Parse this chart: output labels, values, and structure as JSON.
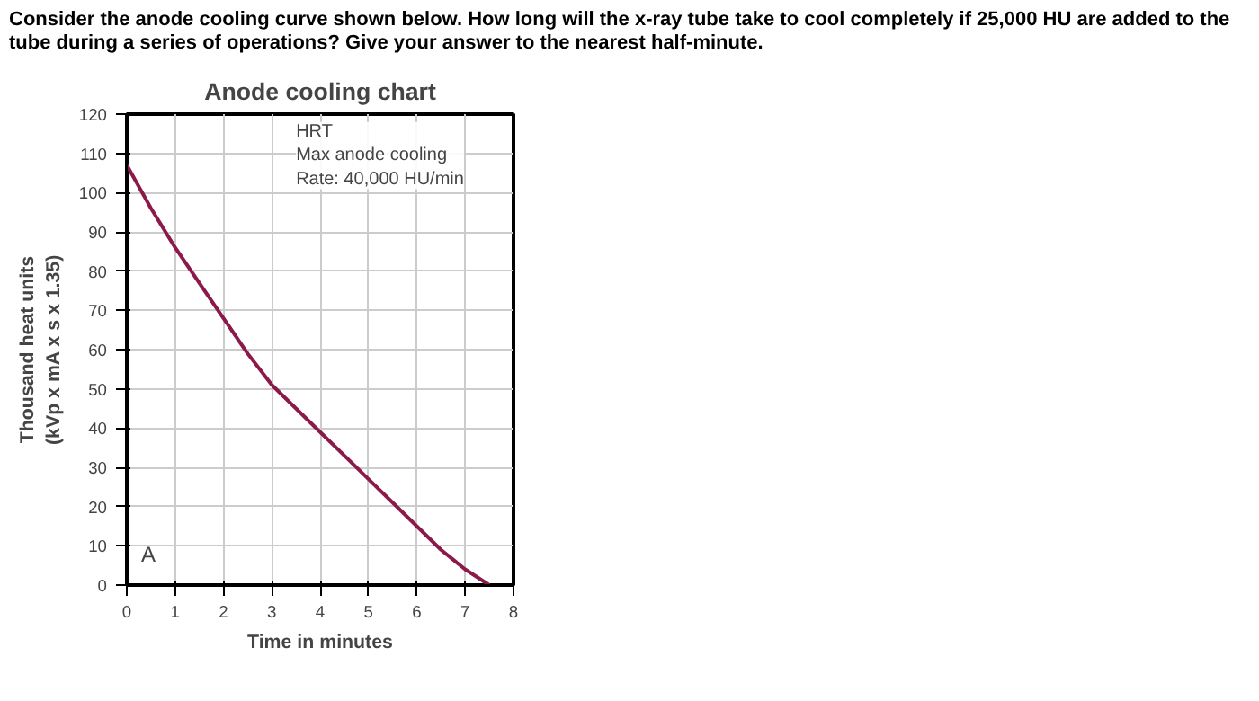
{
  "chart_data": {
    "type": "line",
    "title": "Anode cooling chart",
    "xlabel": "Time in minutes",
    "ylabel": "Thousand heat units\n(kVp x mA x s x 1.35)",
    "annotations": [
      "Consider the anode cooling curve shown below.  How long will the x-ray tube take to cool completely if 25,000 HU are added to the tube during a series of operations? Give your answer to the nearest half-minute.",
      "HRT\nMax anode cooling\nRate: 40,000 HU/min",
      "A"
    ],
    "x": [
      0,
      0.5,
      1,
      1.5,
      2,
      2.5,
      3,
      3.5,
      4,
      4.5,
      5,
      5.5,
      6,
      6.5,
      7,
      7.5
    ],
    "series": [
      {
        "color": "#8b1a4a",
        "values": [
          107,
          96,
          86,
          77,
          68,
          59,
          51,
          45,
          39,
          33,
          27,
          21,
          15,
          9,
          4,
          0
        ]
      }
    ],
    "xlim": [
      0,
      8
    ],
    "ylim": [
      0,
      120
    ],
    "xticks": [
      0,
      1,
      2,
      3,
      4,
      5,
      6,
      7,
      8
    ],
    "yticks": [
      0,
      10,
      20,
      30,
      40,
      50,
      60,
      70,
      80,
      90,
      100,
      110,
      120
    ],
    "grid": true,
    "marker": "none",
    "line_style": "solid"
  }
}
